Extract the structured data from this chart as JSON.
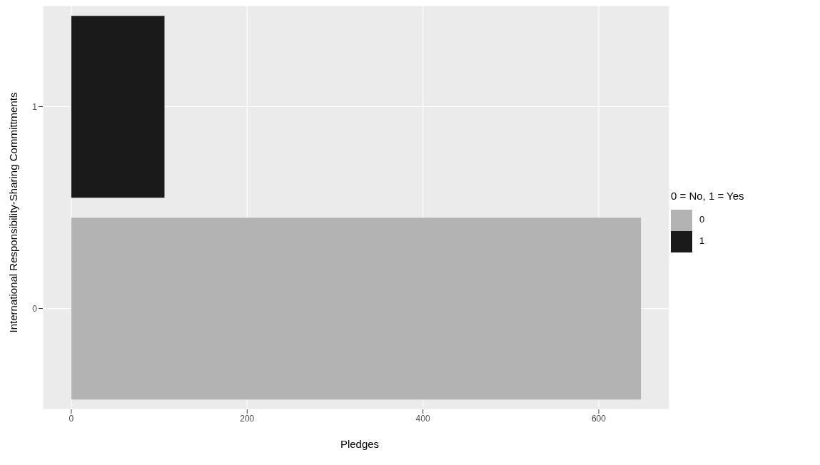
{
  "chart_data": {
    "type": "bar",
    "orientation": "horizontal",
    "stacked": true,
    "xlabel": "Pledges",
    "ylabel": "International Responsibility-Sharing Committments",
    "legend_title": "0 = No, 1 = Yes",
    "categories": [
      "1",
      "0"
    ],
    "series": [
      {
        "name": "0",
        "color": "#b3b3b3",
        "values": [
          null,
          648
        ]
      },
      {
        "name": "1",
        "color": "#1a1a1a",
        "values": [
          106,
          null
        ]
      }
    ],
    "xlim": [
      -32.4,
      680.4
    ],
    "xticks": [
      0,
      200,
      400,
      600
    ],
    "grid": true,
    "legend": "right"
  }
}
